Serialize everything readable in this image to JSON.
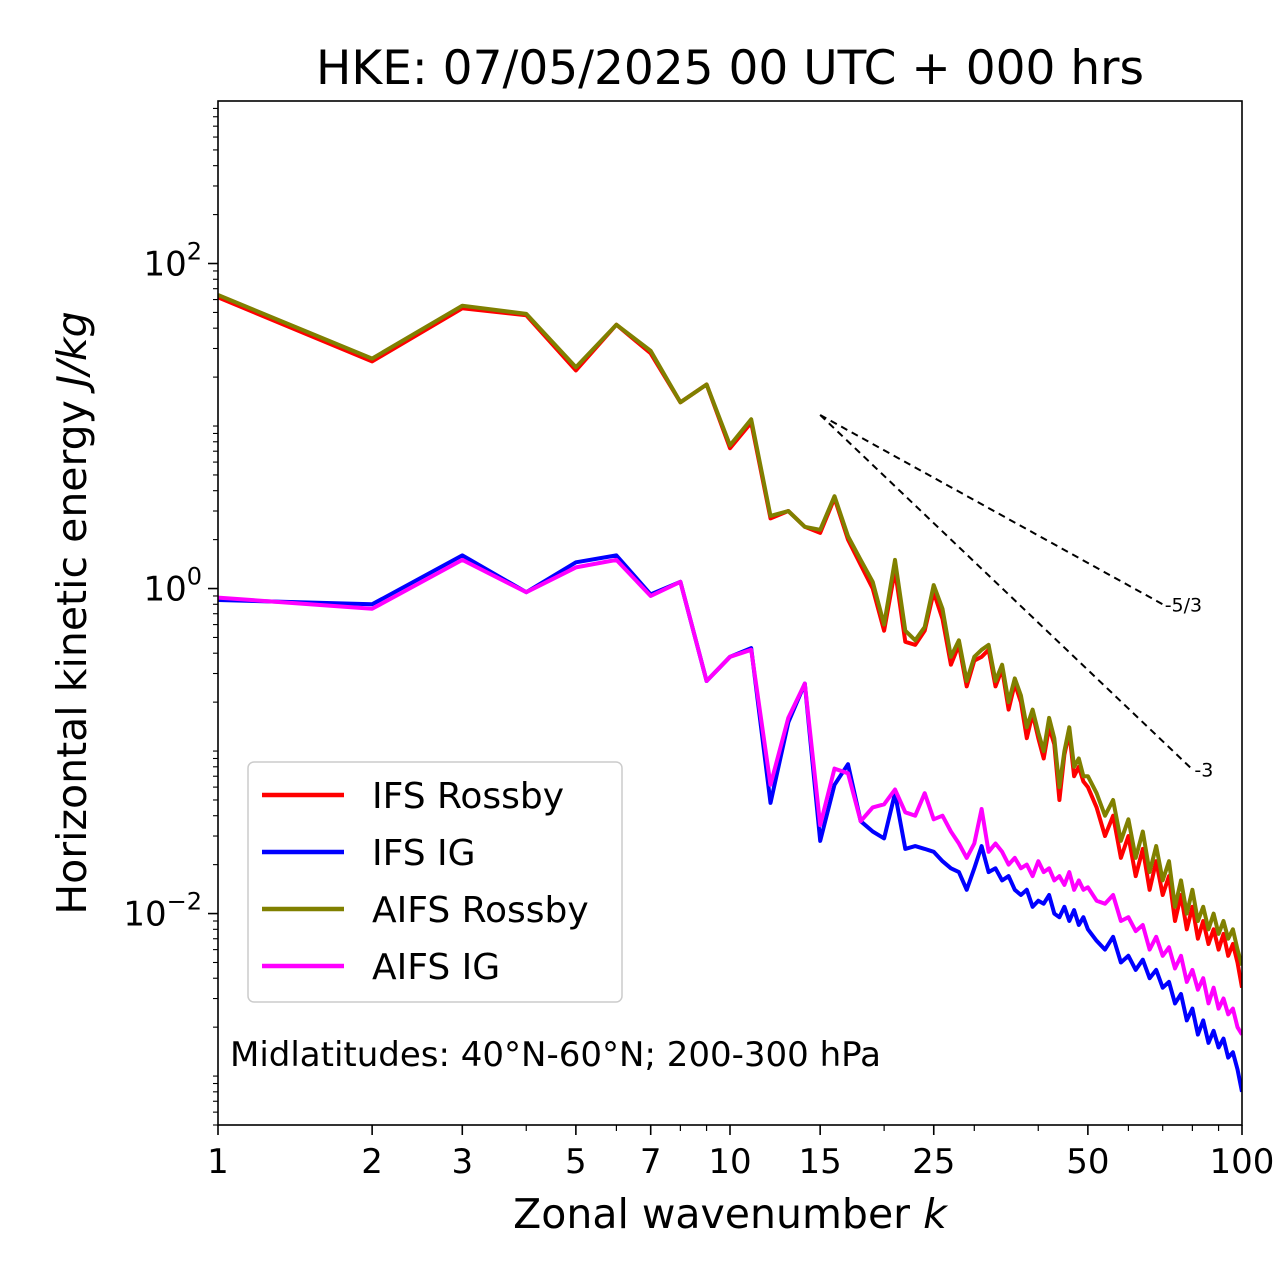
{
  "chart_data": {
    "type": "line",
    "title": "HKE: 07/05/2025 00 UTC + 000 hrs",
    "xlabel": "Zonal wavenumber",
    "xlabel_var": "k",
    "ylabel": "Horizontal kinetic energy",
    "ylabel_unit": "J/kg",
    "xscale": "log",
    "yscale": "log",
    "xlim": [
      1,
      100
    ],
    "ylim": [
      0.0005,
      1000
    ],
    "x_ticks": [
      1,
      2,
      3,
      5,
      7,
      10,
      15,
      25,
      50,
      100
    ],
    "x_tick_labels": [
      "1",
      "2",
      "3",
      "5",
      "7",
      "10",
      "15",
      "25",
      "50",
      "100"
    ],
    "y_ticks": [
      100,
      1,
      0.01
    ],
    "y_tick_labels": [
      {
        "base": "10",
        "exp": "2"
      },
      {
        "base": "10",
        "exp": "0"
      },
      {
        "base": "10",
        "exp": "−2"
      }
    ],
    "grid": false,
    "legend_position": "lower-left",
    "annotation": "Midlatitudes: 40°N-60°N; 200-300 hPa",
    "reference_lines": [
      {
        "label": "-5/3",
        "slope": -1.6667,
        "x": [
          15,
          70
        ],
        "y": [
          11.7,
          0.8
        ]
      },
      {
        "label": "-3",
        "slope": -3,
        "x": [
          15,
          80
        ],
        "y": [
          11.7,
          0.077
        ]
      }
    ],
    "series": [
      {
        "name": "IFS Rossby",
        "color": "#ff0000",
        "x": [
          1,
          2,
          3,
          4,
          5,
          6,
          7,
          8,
          9,
          10,
          11,
          12,
          13,
          14,
          15,
          16,
          17,
          18,
          19,
          20,
          21,
          22,
          23,
          24,
          25,
          26,
          27,
          28,
          29,
          30,
          31,
          32,
          33,
          34,
          35,
          36,
          37,
          38,
          39,
          40,
          41,
          42,
          43,
          44,
          45,
          46,
          47,
          48,
          49,
          50,
          52,
          54,
          56,
          58,
          60,
          62,
          64,
          66,
          68,
          70,
          72,
          74,
          76,
          78,
          80,
          82,
          84,
          86,
          88,
          90,
          92,
          94,
          96,
          98,
          100
        ],
        "y": [
          62,
          25,
          53,
          48,
          22,
          42,
          28,
          14,
          18,
          7.3,
          10.5,
          2.7,
          3.0,
          2.4,
          2.2,
          3.6,
          2.0,
          1.4,
          1.0,
          0.55,
          1.3,
          0.47,
          0.45,
          0.55,
          0.95,
          0.65,
          0.34,
          0.45,
          0.25,
          0.36,
          0.38,
          0.42,
          0.25,
          0.32,
          0.18,
          0.26,
          0.2,
          0.12,
          0.17,
          0.12,
          0.09,
          0.14,
          0.11,
          0.05,
          0.095,
          0.13,
          0.07,
          0.08,
          0.065,
          0.06,
          0.045,
          0.03,
          0.04,
          0.022,
          0.03,
          0.017,
          0.025,
          0.014,
          0.021,
          0.013,
          0.017,
          0.009,
          0.013,
          0.008,
          0.011,
          0.007,
          0.009,
          0.0065,
          0.008,
          0.006,
          0.0075,
          0.0055,
          0.0065,
          0.005,
          0.0035
        ]
      },
      {
        "name": "IFS IG",
        "color": "#0000ff",
        "x": [
          1,
          2,
          3,
          4,
          5,
          6,
          7,
          8,
          9,
          10,
          11,
          12,
          13,
          14,
          15,
          16,
          17,
          18,
          19,
          20,
          21,
          22,
          23,
          24,
          25,
          26,
          27,
          28,
          29,
          30,
          31,
          32,
          33,
          34,
          35,
          36,
          37,
          38,
          39,
          40,
          41,
          42,
          43,
          44,
          45,
          46,
          47,
          48,
          49,
          50,
          52,
          54,
          56,
          58,
          60,
          62,
          64,
          66,
          68,
          70,
          72,
          74,
          76,
          78,
          80,
          82,
          84,
          86,
          88,
          90,
          92,
          94,
          96,
          98,
          100
        ],
        "y": [
          0.85,
          0.8,
          1.6,
          0.95,
          1.45,
          1.6,
          0.92,
          1.1,
          0.27,
          0.38,
          0.43,
          0.048,
          0.15,
          0.26,
          0.028,
          0.062,
          0.083,
          0.037,
          0.032,
          0.029,
          0.055,
          0.025,
          0.026,
          0.025,
          0.024,
          0.021,
          0.019,
          0.018,
          0.014,
          0.019,
          0.026,
          0.018,
          0.019,
          0.016,
          0.017,
          0.014,
          0.013,
          0.014,
          0.011,
          0.012,
          0.0115,
          0.013,
          0.01,
          0.0095,
          0.011,
          0.009,
          0.0105,
          0.0085,
          0.0095,
          0.008,
          0.0068,
          0.006,
          0.0072,
          0.005,
          0.0055,
          0.0045,
          0.0052,
          0.004,
          0.0045,
          0.0035,
          0.0038,
          0.0028,
          0.0032,
          0.0022,
          0.0026,
          0.0018,
          0.0022,
          0.0016,
          0.0019,
          0.0015,
          0.0017,
          0.0013,
          0.0014,
          0.0011,
          0.0008
        ]
      },
      {
        "name": "AIFS Rossby",
        "color": "#808000",
        "x": [
          1,
          2,
          3,
          4,
          5,
          6,
          7,
          8,
          9,
          10,
          11,
          12,
          13,
          14,
          15,
          16,
          17,
          18,
          19,
          20,
          21,
          22,
          23,
          24,
          25,
          26,
          27,
          28,
          29,
          30,
          31,
          32,
          33,
          34,
          35,
          36,
          37,
          38,
          39,
          40,
          41,
          42,
          43,
          44,
          45,
          46,
          47,
          48,
          49,
          50,
          52,
          54,
          56,
          58,
          60,
          62,
          64,
          66,
          68,
          70,
          72,
          74,
          76,
          78,
          80,
          82,
          84,
          86,
          88,
          90,
          92,
          94,
          96,
          98,
          100
        ],
        "y": [
          64,
          26,
          55,
          49,
          23,
          42,
          29,
          14,
          18,
          7.6,
          11,
          2.8,
          3.0,
          2.4,
          2.3,
          3.7,
          2.1,
          1.5,
          1.1,
          0.6,
          1.5,
          0.55,
          0.48,
          0.58,
          1.05,
          0.75,
          0.38,
          0.48,
          0.27,
          0.38,
          0.42,
          0.45,
          0.27,
          0.34,
          0.2,
          0.28,
          0.22,
          0.14,
          0.18,
          0.13,
          0.1,
          0.16,
          0.12,
          0.06,
          0.1,
          0.14,
          0.08,
          0.09,
          0.07,
          0.07,
          0.055,
          0.04,
          0.05,
          0.028,
          0.038,
          0.022,
          0.032,
          0.018,
          0.026,
          0.016,
          0.021,
          0.011,
          0.016,
          0.01,
          0.014,
          0.009,
          0.011,
          0.008,
          0.01,
          0.0075,
          0.009,
          0.007,
          0.008,
          0.006,
          0.0048
        ]
      },
      {
        "name": "AIFS IG",
        "color": "#ff00ff",
        "x": [
          1,
          2,
          3,
          4,
          5,
          6,
          7,
          8,
          9,
          10,
          11,
          12,
          13,
          14,
          15,
          16,
          17,
          18,
          19,
          20,
          21,
          22,
          23,
          24,
          25,
          26,
          27,
          28,
          29,
          30,
          31,
          32,
          33,
          34,
          35,
          36,
          37,
          38,
          39,
          40,
          41,
          42,
          43,
          44,
          45,
          46,
          47,
          48,
          49,
          50,
          52,
          54,
          56,
          58,
          60,
          62,
          64,
          66,
          68,
          70,
          72,
          74,
          76,
          78,
          80,
          82,
          84,
          86,
          88,
          90,
          92,
          94,
          96,
          98,
          100
        ],
        "y": [
          0.88,
          0.75,
          1.5,
          0.95,
          1.35,
          1.5,
          0.9,
          1.1,
          0.27,
          0.38,
          0.42,
          0.062,
          0.16,
          0.26,
          0.035,
          0.078,
          0.073,
          0.037,
          0.045,
          0.047,
          0.058,
          0.042,
          0.04,
          0.055,
          0.038,
          0.04,
          0.032,
          0.027,
          0.022,
          0.027,
          0.044,
          0.024,
          0.027,
          0.024,
          0.02,
          0.022,
          0.019,
          0.02,
          0.017,
          0.021,
          0.018,
          0.019,
          0.016,
          0.017,
          0.015,
          0.018,
          0.014,
          0.016,
          0.014,
          0.0145,
          0.012,
          0.0115,
          0.013,
          0.009,
          0.0095,
          0.0078,
          0.0085,
          0.006,
          0.0072,
          0.0055,
          0.0062,
          0.0046,
          0.0055,
          0.0038,
          0.0045,
          0.0034,
          0.004,
          0.0028,
          0.0035,
          0.0026,
          0.003,
          0.0024,
          0.0026,
          0.002,
          0.0018
        ]
      }
    ]
  }
}
